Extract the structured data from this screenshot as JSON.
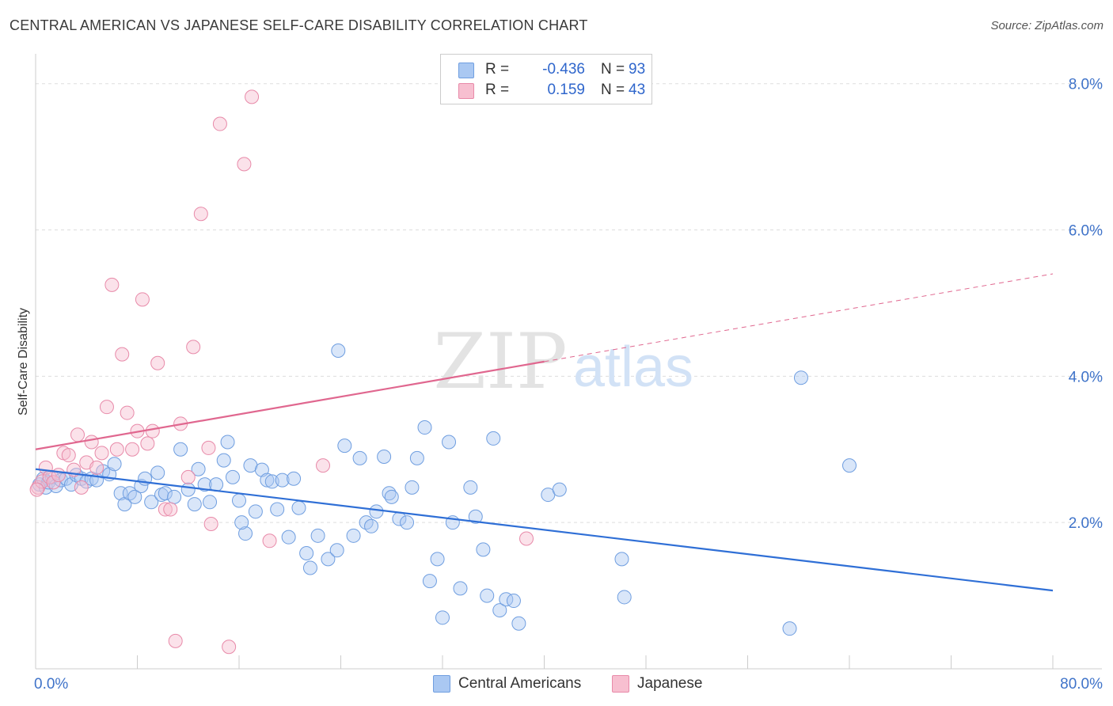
{
  "title": "CENTRAL AMERICAN VS JAPANESE SELF-CARE DISABILITY CORRELATION CHART",
  "source": "Source: ZipAtlas.com",
  "watermark": {
    "zip": "ZIP",
    "atlas": "atlas"
  },
  "legend": {
    "rows": [
      {
        "r_label": "R =",
        "r_value": "-0.436",
        "n_label": "N =",
        "n_value": "93"
      },
      {
        "r_label": "R =",
        "r_value": "0.159",
        "n_label": "N =",
        "n_value": "43"
      }
    ]
  },
  "bottom_legend": [
    "Central Americans",
    "Japanese"
  ],
  "colors": {
    "blue_fill": "#aac8f2",
    "blue_stroke": "#6f9ee0",
    "blue_line": "#2f6fd6",
    "pink_fill": "#f7bfd0",
    "pink_stroke": "#e88aa9",
    "pink_line": "#e0678f",
    "tick_label": "#3f73c9",
    "grid": "#dddddd"
  },
  "chart_data": {
    "type": "scatter",
    "title": "CENTRAL AMERICAN VS JAPANESE SELF-CARE DISABILITY CORRELATION CHART",
    "xlabel": "",
    "ylabel": "Self-Care Disability",
    "xlim": [
      0,
      80
    ],
    "ylim": [
      0,
      8.3
    ],
    "x_tick_labels": [
      "0.0%",
      "80.0%"
    ],
    "y_ticks": [
      2,
      4,
      6,
      8
    ],
    "y_tick_labels": [
      "2.0%",
      "4.0%",
      "6.0%",
      "8.0%"
    ],
    "grid": true,
    "legend_position": "top-center",
    "series": [
      {
        "name": "Central Americans",
        "r": -0.436,
        "n": 93,
        "trend": {
          "x": [
            0,
            80
          ],
          "y": [
            2.73,
            1.07
          ],
          "dashed_from": null
        },
        "points": [
          [
            0.3,
            2.52
          ],
          [
            0.6,
            2.6
          ],
          [
            0.8,
            2.48
          ],
          [
            1.0,
            2.55
          ],
          [
            1.3,
            2.62
          ],
          [
            1.6,
            2.5
          ],
          [
            2.0,
            2.58
          ],
          [
            2.4,
            2.6
          ],
          [
            2.8,
            2.52
          ],
          [
            3.2,
            2.65
          ],
          [
            3.6,
            2.6
          ],
          [
            4.0,
            2.56
          ],
          [
            4.4,
            2.6
          ],
          [
            4.8,
            2.58
          ],
          [
            5.3,
            2.7
          ],
          [
            5.8,
            2.66
          ],
          [
            6.2,
            2.8
          ],
          [
            6.7,
            2.4
          ],
          [
            7.0,
            2.25
          ],
          [
            7.4,
            2.4
          ],
          [
            7.8,
            2.35
          ],
          [
            8.3,
            2.5
          ],
          [
            8.6,
            2.6
          ],
          [
            9.1,
            2.28
          ],
          [
            9.6,
            2.68
          ],
          [
            9.9,
            2.38
          ],
          [
            10.2,
            2.4
          ],
          [
            10.9,
            2.35
          ],
          [
            11.4,
            3.0
          ],
          [
            12.0,
            2.45
          ],
          [
            12.5,
            2.25
          ],
          [
            12.8,
            2.73
          ],
          [
            13.3,
            2.52
          ],
          [
            13.7,
            2.28
          ],
          [
            14.2,
            2.52
          ],
          [
            14.8,
            2.85
          ],
          [
            15.1,
            3.1
          ],
          [
            15.5,
            2.62
          ],
          [
            16.0,
            2.3
          ],
          [
            16.5,
            1.85
          ],
          [
            16.9,
            2.78
          ],
          [
            17.3,
            2.15
          ],
          [
            17.8,
            2.72
          ],
          [
            18.2,
            2.58
          ],
          [
            18.6,
            2.56
          ],
          [
            19.0,
            2.18
          ],
          [
            19.4,
            2.58
          ],
          [
            19.9,
            1.8
          ],
          [
            20.3,
            2.6
          ],
          [
            20.7,
            2.2
          ],
          [
            21.3,
            1.58
          ],
          [
            21.6,
            1.38
          ],
          [
            22.2,
            1.82
          ],
          [
            23.0,
            1.5
          ],
          [
            23.7,
            1.62
          ],
          [
            25.0,
            1.82
          ],
          [
            25.5,
            2.88
          ],
          [
            26.0,
            2.0
          ],
          [
            26.4,
            1.95
          ],
          [
            26.8,
            2.15
          ],
          [
            27.4,
            2.9
          ],
          [
            27.8,
            2.4
          ],
          [
            28.0,
            2.35
          ],
          [
            28.6,
            2.05
          ],
          [
            29.2,
            2.0
          ],
          [
            29.6,
            2.48
          ],
          [
            30.0,
            2.88
          ],
          [
            30.6,
            3.3
          ],
          [
            31.0,
            1.2
          ],
          [
            31.6,
            1.5
          ],
          [
            32.0,
            0.7
          ],
          [
            32.5,
            3.1
          ],
          [
            32.8,
            2.0
          ],
          [
            33.4,
            1.1
          ],
          [
            34.2,
            2.48
          ],
          [
            34.6,
            2.08
          ],
          [
            35.2,
            1.63
          ],
          [
            35.5,
            1.0
          ],
          [
            36.0,
            3.15
          ],
          [
            36.5,
            0.8
          ],
          [
            37.0,
            0.95
          ],
          [
            37.6,
            0.93
          ],
          [
            38.0,
            0.62
          ],
          [
            40.3,
            2.38
          ],
          [
            41.2,
            2.45
          ],
          [
            46.1,
            1.5
          ],
          [
            46.3,
            0.98
          ],
          [
            59.3,
            0.55
          ],
          [
            64.0,
            2.78
          ],
          [
            16.2,
            2.0
          ],
          [
            23.8,
            4.35
          ],
          [
            24.3,
            3.05
          ],
          [
            60.2,
            3.98
          ]
        ]
      },
      {
        "name": "Japanese",
        "r": 0.159,
        "n": 43,
        "trend": {
          "x": [
            0,
            80
          ],
          "y": [
            3.0,
            5.4
          ],
          "dashed_from": 40
        },
        "points": [
          [
            0.2,
            2.48
          ],
          [
            0.5,
            2.56
          ],
          [
            0.8,
            2.75
          ],
          [
            1.1,
            2.62
          ],
          [
            1.4,
            2.55
          ],
          [
            1.8,
            2.65
          ],
          [
            2.2,
            2.95
          ],
          [
            2.6,
            2.92
          ],
          [
            3.0,
            2.72
          ],
          [
            3.3,
            3.2
          ],
          [
            3.6,
            2.48
          ],
          [
            4.0,
            2.82
          ],
          [
            4.4,
            3.1
          ],
          [
            4.8,
            2.75
          ],
          [
            5.2,
            2.95
          ],
          [
            5.6,
            3.58
          ],
          [
            6.0,
            5.25
          ],
          [
            6.4,
            3.0
          ],
          [
            6.8,
            4.3
          ],
          [
            7.2,
            3.5
          ],
          [
            7.6,
            3.0
          ],
          [
            8.0,
            3.25
          ],
          [
            8.4,
            5.05
          ],
          [
            8.8,
            3.08
          ],
          [
            9.2,
            3.25
          ],
          [
            9.6,
            4.18
          ],
          [
            10.2,
            2.18
          ],
          [
            10.6,
            2.18
          ],
          [
            11.0,
            0.38
          ],
          [
            11.4,
            3.35
          ],
          [
            12.0,
            2.62
          ],
          [
            12.4,
            4.4
          ],
          [
            13.0,
            6.22
          ],
          [
            13.6,
            3.02
          ],
          [
            13.8,
            1.98
          ],
          [
            14.5,
            7.45
          ],
          [
            15.2,
            0.3
          ],
          [
            16.4,
            6.9
          ],
          [
            17.0,
            7.82
          ],
          [
            18.4,
            1.75
          ],
          [
            22.6,
            2.78
          ],
          [
            38.6,
            1.78
          ],
          [
            0.1,
            2.45
          ]
        ]
      }
    ]
  }
}
